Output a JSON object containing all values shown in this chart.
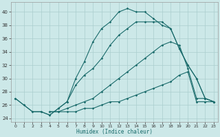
{
  "title": "",
  "xlabel": "Humidex (Indice chaleur)",
  "ylabel": "",
  "background_color": "#cce8e8",
  "grid_color": "#aacece",
  "line_color": "#1a6b6b",
  "xlim": [
    -0.5,
    23.5
  ],
  "ylim": [
    23.5,
    41.5
  ],
  "xticks": [
    0,
    1,
    2,
    3,
    4,
    5,
    6,
    7,
    8,
    9,
    10,
    11,
    12,
    13,
    14,
    15,
    16,
    17,
    18,
    19,
    20,
    21,
    22,
    23
  ],
  "yticks": [
    24,
    26,
    28,
    30,
    32,
    34,
    36,
    38,
    40
  ],
  "line1_x": [
    0,
    1,
    2,
    3,
    4,
    5,
    6,
    7,
    8,
    9,
    10,
    11,
    12,
    13,
    14,
    15,
    16,
    17,
    18,
    19,
    20,
    21,
    22,
    23
  ],
  "line1_y": [
    27,
    26,
    25,
    25,
    24.5,
    25.5,
    26.5,
    30,
    32.5,
    35.5,
    37.5,
    38.5,
    40,
    40.5,
    40,
    40,
    39,
    38,
    37.5,
    34.5,
    32,
    30,
    27,
    26.5
  ],
  "line2_x": [
    0,
    1,
    2,
    3,
    4,
    5,
    6,
    7,
    8,
    9,
    10,
    11,
    12,
    13,
    14,
    15,
    16,
    17,
    18,
    19,
    20,
    21,
    22,
    23
  ],
  "line2_y": [
    27,
    26,
    25,
    25,
    24.5,
    25.5,
    26.5,
    29,
    30.5,
    31.5,
    33,
    35,
    36.5,
    37.5,
    38.5,
    38.5,
    38.5,
    38.5,
    37.5,
    34.5,
    32,
    30,
    27,
    26.5
  ],
  "line3_x": [
    4,
    5,
    6,
    7,
    8,
    9,
    10,
    11,
    12,
    13,
    14,
    15,
    16,
    17,
    18,
    19,
    20,
    21,
    22,
    23
  ],
  "line3_y": [
    25,
    25,
    25.5,
    26,
    26.5,
    27,
    28,
    29,
    30,
    31,
    32,
    33,
    34,
    35,
    35.5,
    35,
    31.5,
    27,
    27,
    26.5
  ],
  "line4_x": [
    4,
    5,
    6,
    7,
    8,
    9,
    10,
    11,
    12,
    13,
    14,
    15,
    16,
    17,
    18,
    19,
    20,
    21,
    22,
    23
  ],
  "line4_y": [
    25,
    25,
    25,
    25,
    25.5,
    25.5,
    26,
    26.5,
    26.5,
    27,
    27.5,
    28,
    28.5,
    29,
    29.5,
    30.5,
    31,
    26.5,
    26.5,
    26.5
  ]
}
